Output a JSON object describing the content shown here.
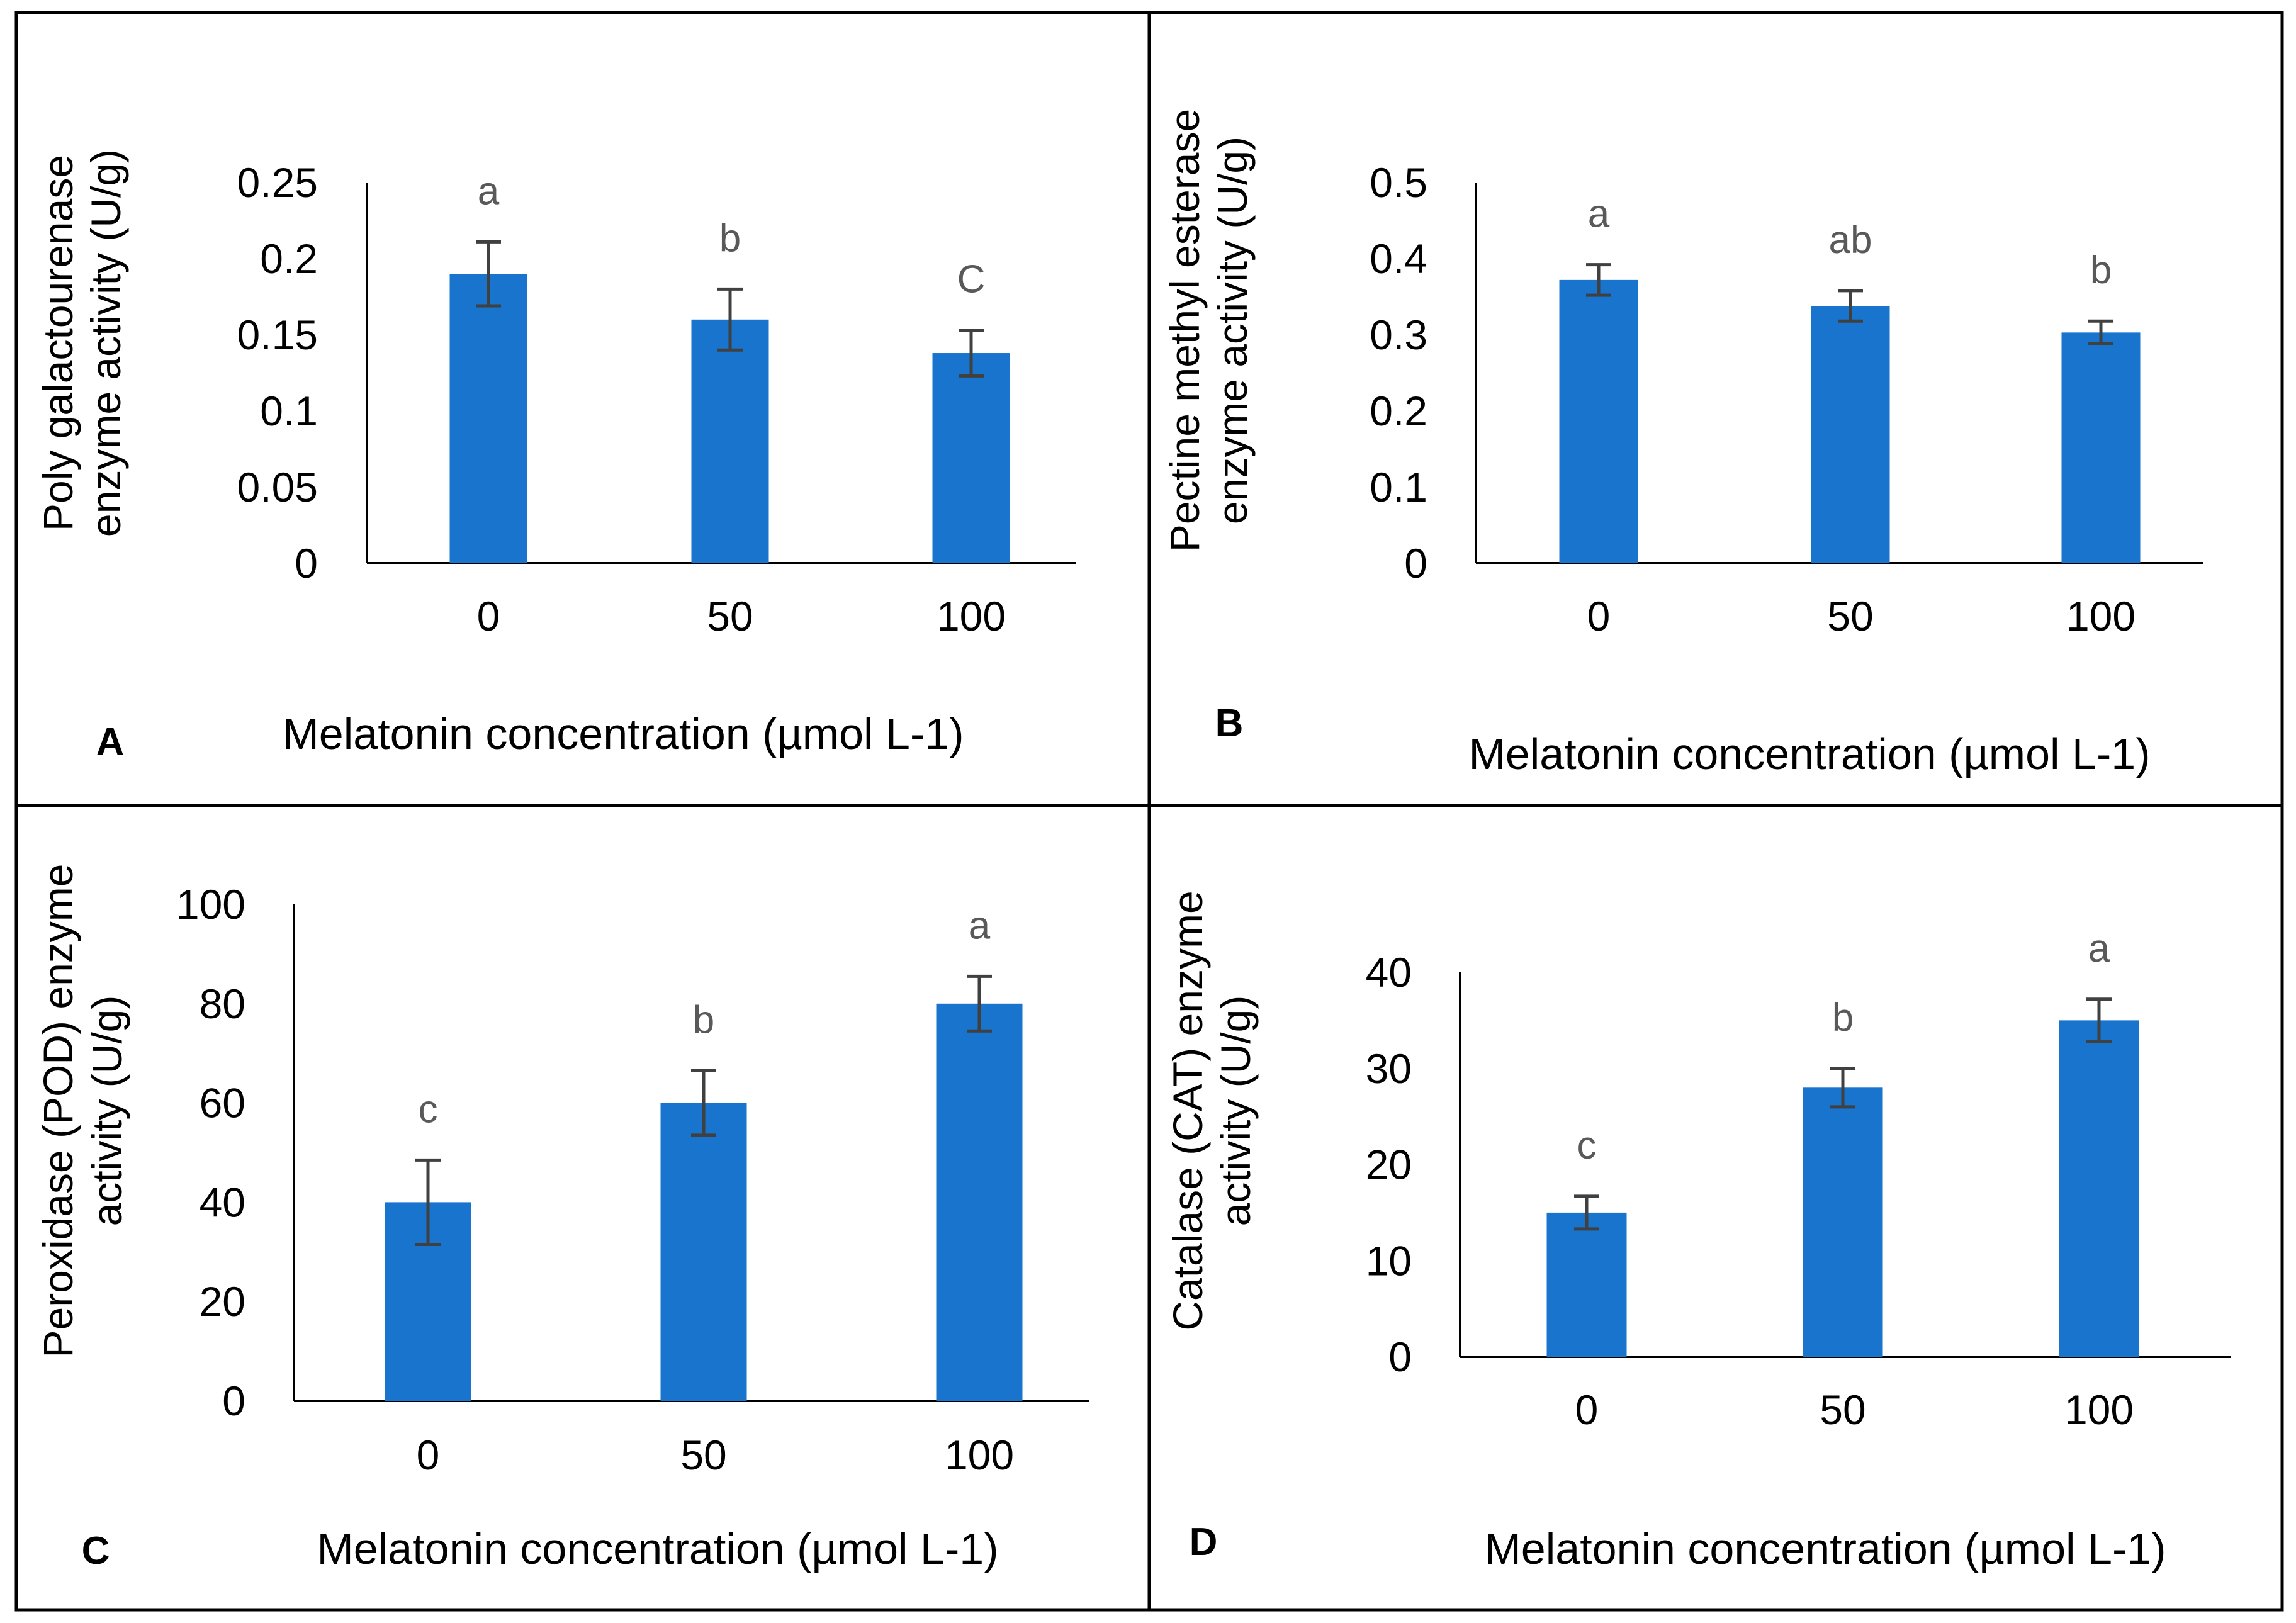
{
  "chart_data": [
    {
      "id": "A",
      "type": "bar",
      "panel_label": "A",
      "categories": [
        "0",
        "50",
        "100"
      ],
      "values": [
        0.19,
        0.16,
        0.138
      ],
      "errors": [
        0.021,
        0.02,
        0.015
      ],
      "significance": [
        "a",
        "b",
        "C"
      ],
      "ylim": [
        0,
        0.25
      ],
      "yticks": [
        "0",
        "0.05",
        "0.1",
        "0.15",
        "0.2",
        "0.25"
      ],
      "ylabel": [
        "Poly galactourenase",
        "enzyme activity (U/g)"
      ],
      "xlabel": "Melatonin concentration (µmol L-1)",
      "grid": false
    },
    {
      "id": "B",
      "type": "bar",
      "panel_label": "B",
      "categories": [
        "0",
        "50",
        "100"
      ],
      "values": [
        0.372,
        0.338,
        0.303
      ],
      "errors": [
        0.02,
        0.02,
        0.015
      ],
      "significance": [
        "a",
        "ab",
        "b"
      ],
      "ylim": [
        0,
        0.5
      ],
      "yticks": [
        "0",
        "0.1",
        "0.2",
        "0.3",
        "0.4",
        "0.5"
      ],
      "ylabel": [
        "Pectine methyl esterase",
        "enzyme activity (U/g)"
      ],
      "xlabel": "Melatonin concentration (µmol L-1)",
      "grid": false
    },
    {
      "id": "C",
      "type": "bar",
      "panel_label": "C",
      "categories": [
        "0",
        "50",
        "100"
      ],
      "values": [
        40,
        60,
        80
      ],
      "errors": [
        8.5,
        6.5,
        5.5
      ],
      "significance": [
        "c",
        "b",
        "a"
      ],
      "ylim": [
        0,
        100
      ],
      "yticks": [
        "0",
        "20",
        "40",
        "60",
        "80",
        "100"
      ],
      "ylabel": [
        "Peroxidase (POD) enzyme",
        "activity (U/g)"
      ],
      "xlabel": "Melatonin concentration (µmol L-1)",
      "grid": false
    },
    {
      "id": "D",
      "type": "bar",
      "panel_label": "D",
      "categories": [
        "0",
        "50",
        "100"
      ],
      "values": [
        15,
        28,
        35
      ],
      "errors": [
        1.7,
        2,
        2.2
      ],
      "significance": [
        "c",
        "b",
        "a"
      ],
      "ylim": [
        0,
        40
      ],
      "yticks": [
        "0",
        "10",
        "20",
        "30",
        "40"
      ],
      "ylabel": [
        "Catalase (CAT) enzyme",
        "activity (U/g)"
      ],
      "xlabel": "Melatonin concentration (µmol L-1)",
      "grid": false
    }
  ],
  "colors": {
    "bar": "#1874CD",
    "error": "#404040",
    "significance": "#595959"
  }
}
